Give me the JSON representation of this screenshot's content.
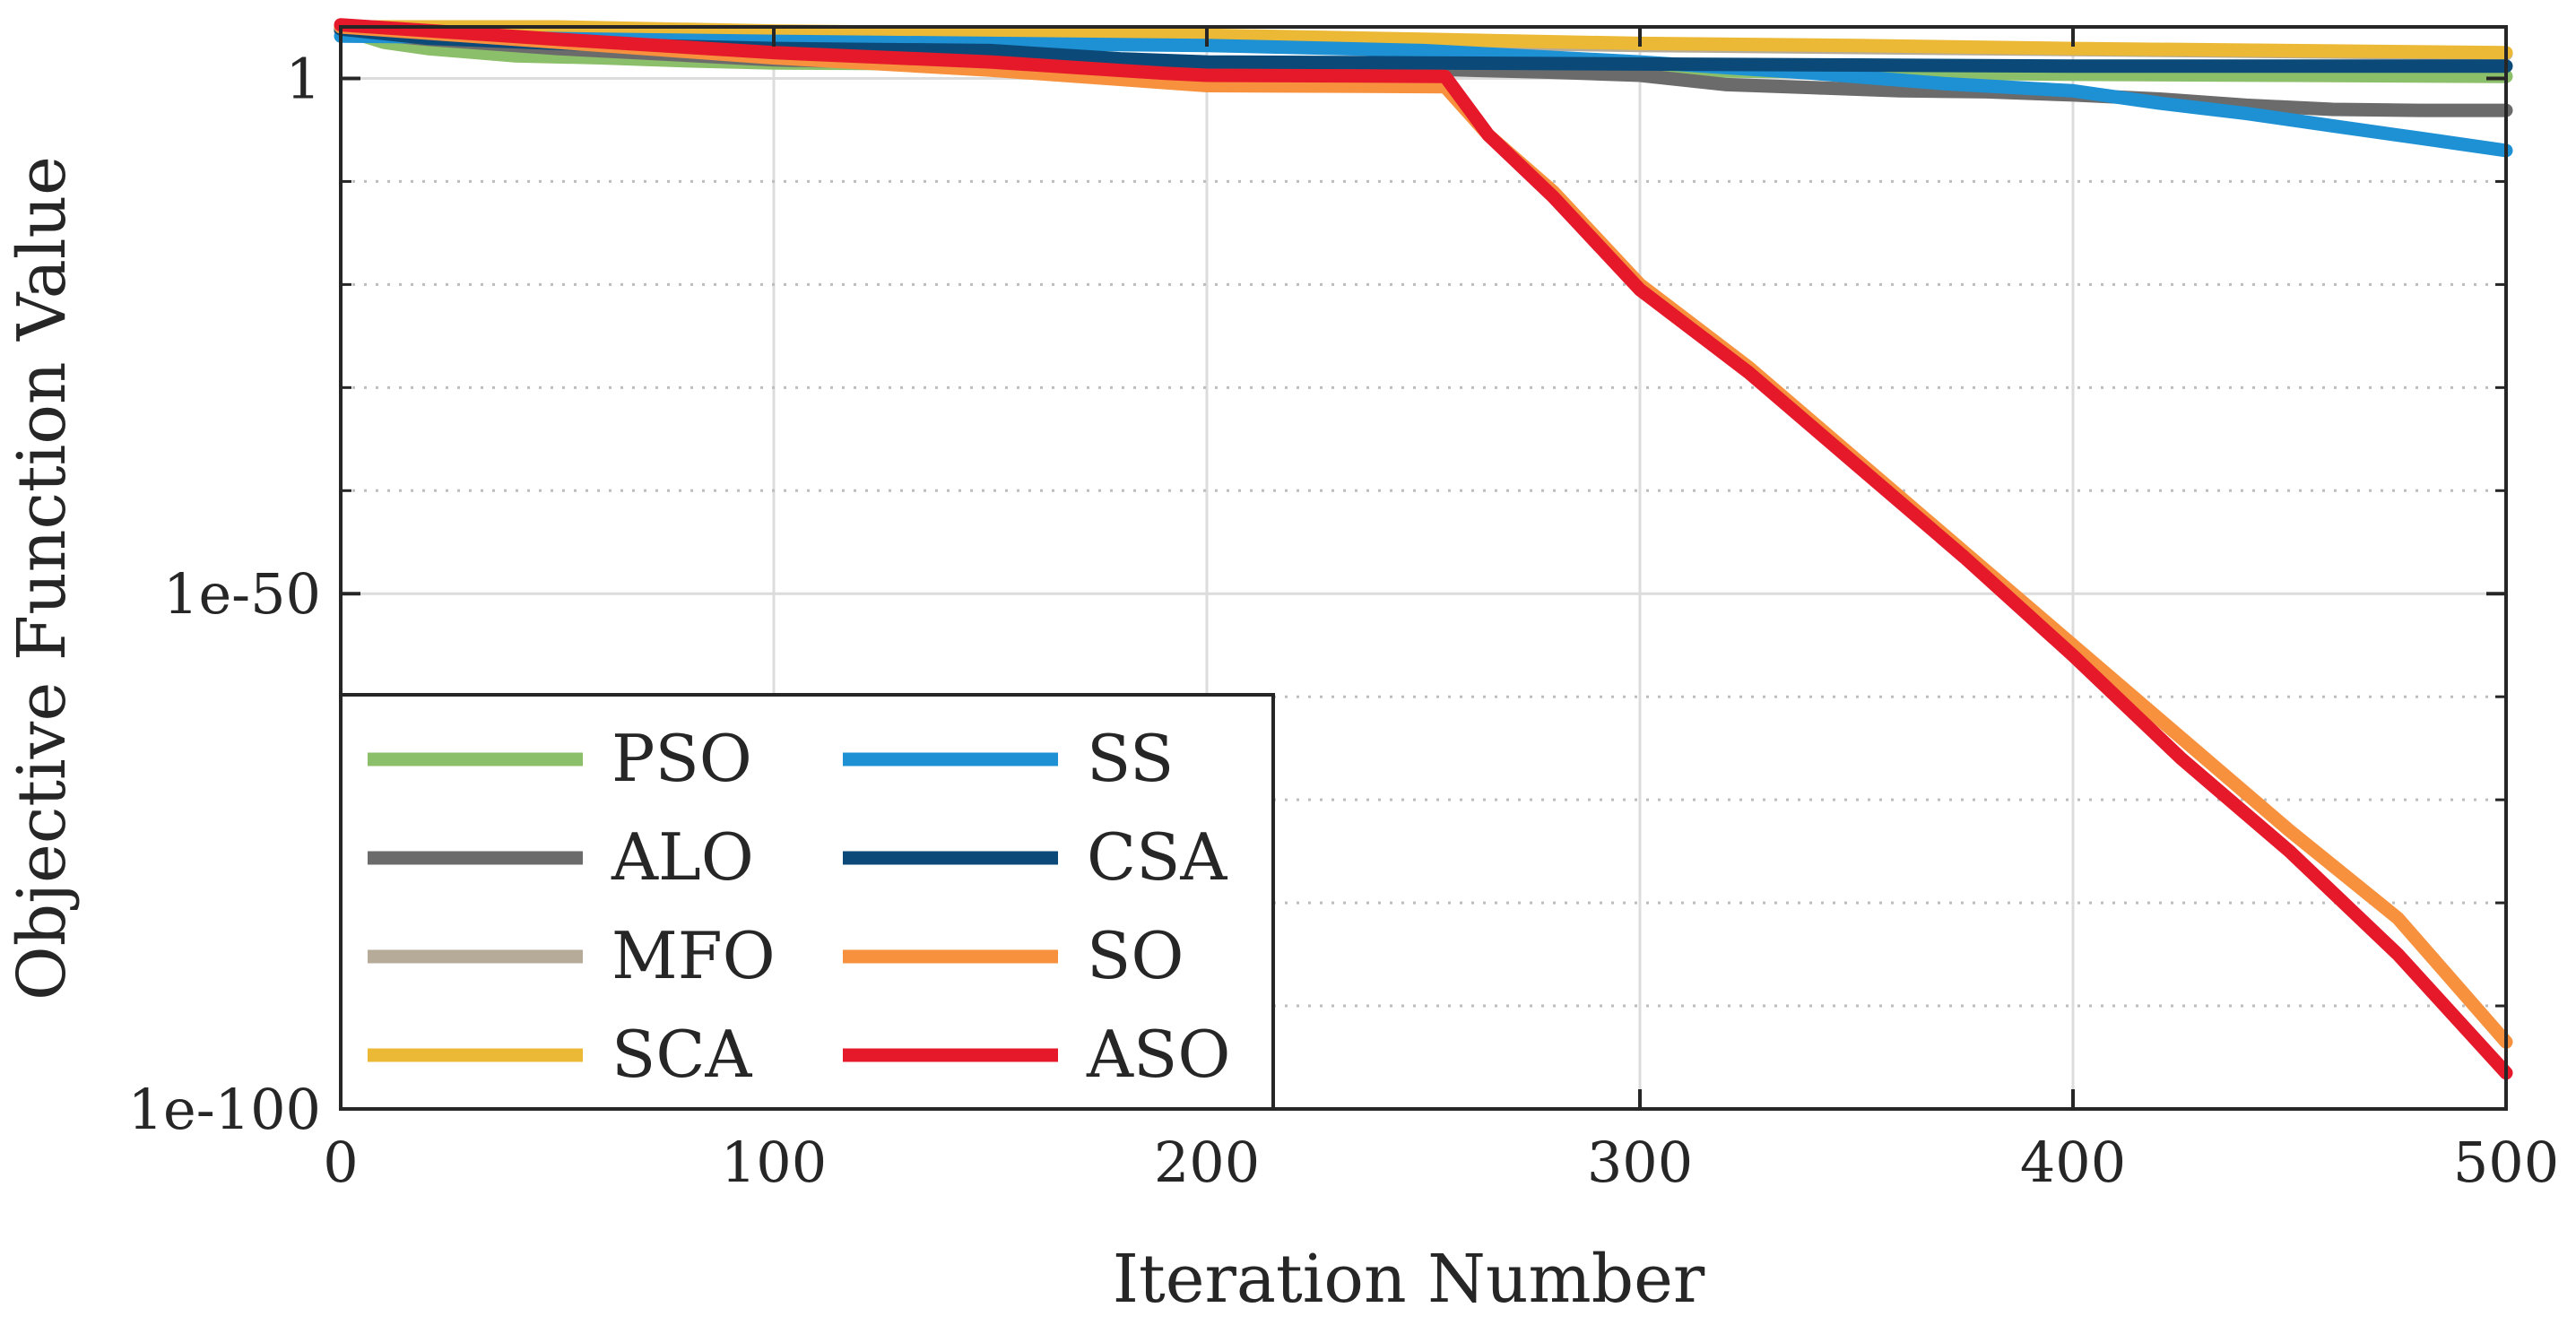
{
  "chart_data": {
    "type": "line",
    "title": "",
    "xlabel": "Iteration Number",
    "ylabel": "Objective Function Value",
    "xlim": [
      0,
      500
    ],
    "ylim_log10": [
      -100,
      5
    ],
    "x_ticks": [
      {
        "value": 0,
        "label": "0"
      },
      {
        "value": 100,
        "label": "100"
      },
      {
        "value": 200,
        "label": "200"
      },
      {
        "value": 300,
        "label": "300"
      },
      {
        "value": 400,
        "label": "400"
      },
      {
        "value": 500,
        "label": "500"
      }
    ],
    "y_ticks": [
      {
        "log10": 0,
        "label": "1"
      },
      {
        "log10": -50,
        "label": "1e-50"
      },
      {
        "log10": -100,
        "label": "1e-100"
      }
    ],
    "y_minor_log10": [
      -10,
      -20,
      -30,
      -40,
      -60,
      -70,
      -80,
      -90
    ],
    "grid": true,
    "legend": {
      "position": "bottom-left",
      "columns": 2
    },
    "series": [
      {
        "name": "PSO",
        "color": "#8cbf69",
        "points": [
          [
            0,
            4.8
          ],
          [
            10,
            3.5
          ],
          [
            20,
            2.9
          ],
          [
            40,
            2.2
          ],
          [
            60,
            2.0
          ],
          [
            80,
            1.7
          ],
          [
            100,
            1.5
          ],
          [
            150,
            1.4
          ],
          [
            200,
            1.2
          ],
          [
            250,
            1.0
          ],
          [
            300,
            0.8
          ],
          [
            350,
            0.6
          ],
          [
            400,
            0.4
          ],
          [
            450,
            0.3
          ],
          [
            500,
            0.2
          ]
        ]
      },
      {
        "name": "ALO",
        "color": "#6b6b6b",
        "points": [
          [
            0,
            4.6
          ],
          [
            20,
            3.8
          ],
          [
            50,
            2.9
          ],
          [
            100,
            1.8
          ],
          [
            150,
            1.4
          ],
          [
            200,
            1.2
          ],
          [
            250,
            0.9
          ],
          [
            280,
            0.6
          ],
          [
            300,
            0.3
          ],
          [
            320,
            -0.6
          ],
          [
            340,
            -0.9
          ],
          [
            360,
            -1.2
          ],
          [
            380,
            -1.3
          ],
          [
            400,
            -1.6
          ],
          [
            420,
            -2.0
          ],
          [
            440,
            -2.6
          ],
          [
            460,
            -3.0
          ],
          [
            480,
            -3.1
          ],
          [
            500,
            -3.1
          ]
        ]
      },
      {
        "name": "MFO",
        "color": "#b5ab98",
        "points": [
          [
            0,
            5.0
          ],
          [
            50,
            4.7
          ],
          [
            100,
            4.3
          ],
          [
            150,
            4.0
          ],
          [
            200,
            3.8
          ],
          [
            250,
            3.5
          ],
          [
            300,
            3.2
          ],
          [
            350,
            3.0
          ],
          [
            400,
            2.8
          ],
          [
            450,
            2.6
          ],
          [
            500,
            2.4
          ]
        ]
      },
      {
        "name": "SCA",
        "color": "#ebb935",
        "points": [
          [
            0,
            5.0
          ],
          [
            50,
            5.0
          ],
          [
            100,
            4.6
          ],
          [
            150,
            4.4
          ],
          [
            200,
            4.2
          ],
          [
            250,
            3.8
          ],
          [
            300,
            3.4
          ],
          [
            350,
            3.2
          ],
          [
            400,
            2.9
          ],
          [
            450,
            2.7
          ],
          [
            500,
            2.5
          ]
        ]
      },
      {
        "name": "SS",
        "color": "#1e90d4",
        "points": [
          [
            0,
            4.1
          ],
          [
            30,
            4.0
          ],
          [
            60,
            3.8
          ],
          [
            100,
            3.6
          ],
          [
            150,
            3.4
          ],
          [
            200,
            3.2
          ],
          [
            250,
            2.7
          ],
          [
            300,
            1.6
          ],
          [
            340,
            0.5
          ],
          [
            370,
            -0.5
          ],
          [
            400,
            -1.2
          ],
          [
            420,
            -2.4
          ],
          [
            440,
            -3.4
          ],
          [
            460,
            -4.6
          ],
          [
            480,
            -5.8
          ],
          [
            500,
            -7.0
          ]
        ]
      },
      {
        "name": "CSA",
        "color": "#0b4a78",
        "points": [
          [
            0,
            4.8
          ],
          [
            20,
            3.9
          ],
          [
            50,
            3.4
          ],
          [
            100,
            2.9
          ],
          [
            150,
            2.7
          ],
          [
            180,
            1.9
          ],
          [
            200,
            1.6
          ],
          [
            250,
            1.5
          ],
          [
            300,
            1.4
          ],
          [
            350,
            1.3
          ],
          [
            400,
            1.2
          ],
          [
            450,
            1.2
          ],
          [
            500,
            1.2
          ]
        ]
      },
      {
        "name": "SO",
        "color": "#f7913d",
        "points": [
          [
            0,
            5.0
          ],
          [
            50,
            3.5
          ],
          [
            100,
            2.0
          ],
          [
            150,
            0.8
          ],
          [
            200,
            -0.7
          ],
          [
            255,
            -0.8
          ],
          [
            265,
            -5.5
          ],
          [
            280,
            -11.0
          ],
          [
            300,
            -20.0
          ],
          [
            325,
            -28.0
          ],
          [
            350,
            -37.0
          ],
          [
            375,
            -46.0
          ],
          [
            400,
            -55.0
          ],
          [
            425,
            -64.0
          ],
          [
            450,
            -73.0
          ],
          [
            475,
            -81.5
          ],
          [
            500,
            -93.5
          ]
        ]
      },
      {
        "name": "ASO",
        "color": "#e6192b",
        "points": [
          [
            0,
            5.2
          ],
          [
            50,
            3.8
          ],
          [
            100,
            2.5
          ],
          [
            150,
            1.6
          ],
          [
            190,
            0.5
          ],
          [
            200,
            0.3
          ],
          [
            255,
            0.2
          ],
          [
            265,
            -5.5
          ],
          [
            280,
            -11.5
          ],
          [
            300,
            -20.5
          ],
          [
            325,
            -28.5
          ],
          [
            350,
            -37.5
          ],
          [
            375,
            -46.5
          ],
          [
            400,
            -56.0
          ],
          [
            425,
            -66.0
          ],
          [
            450,
            -75.0
          ],
          [
            475,
            -85.0
          ],
          [
            500,
            -96.5
          ]
        ]
      }
    ]
  }
}
